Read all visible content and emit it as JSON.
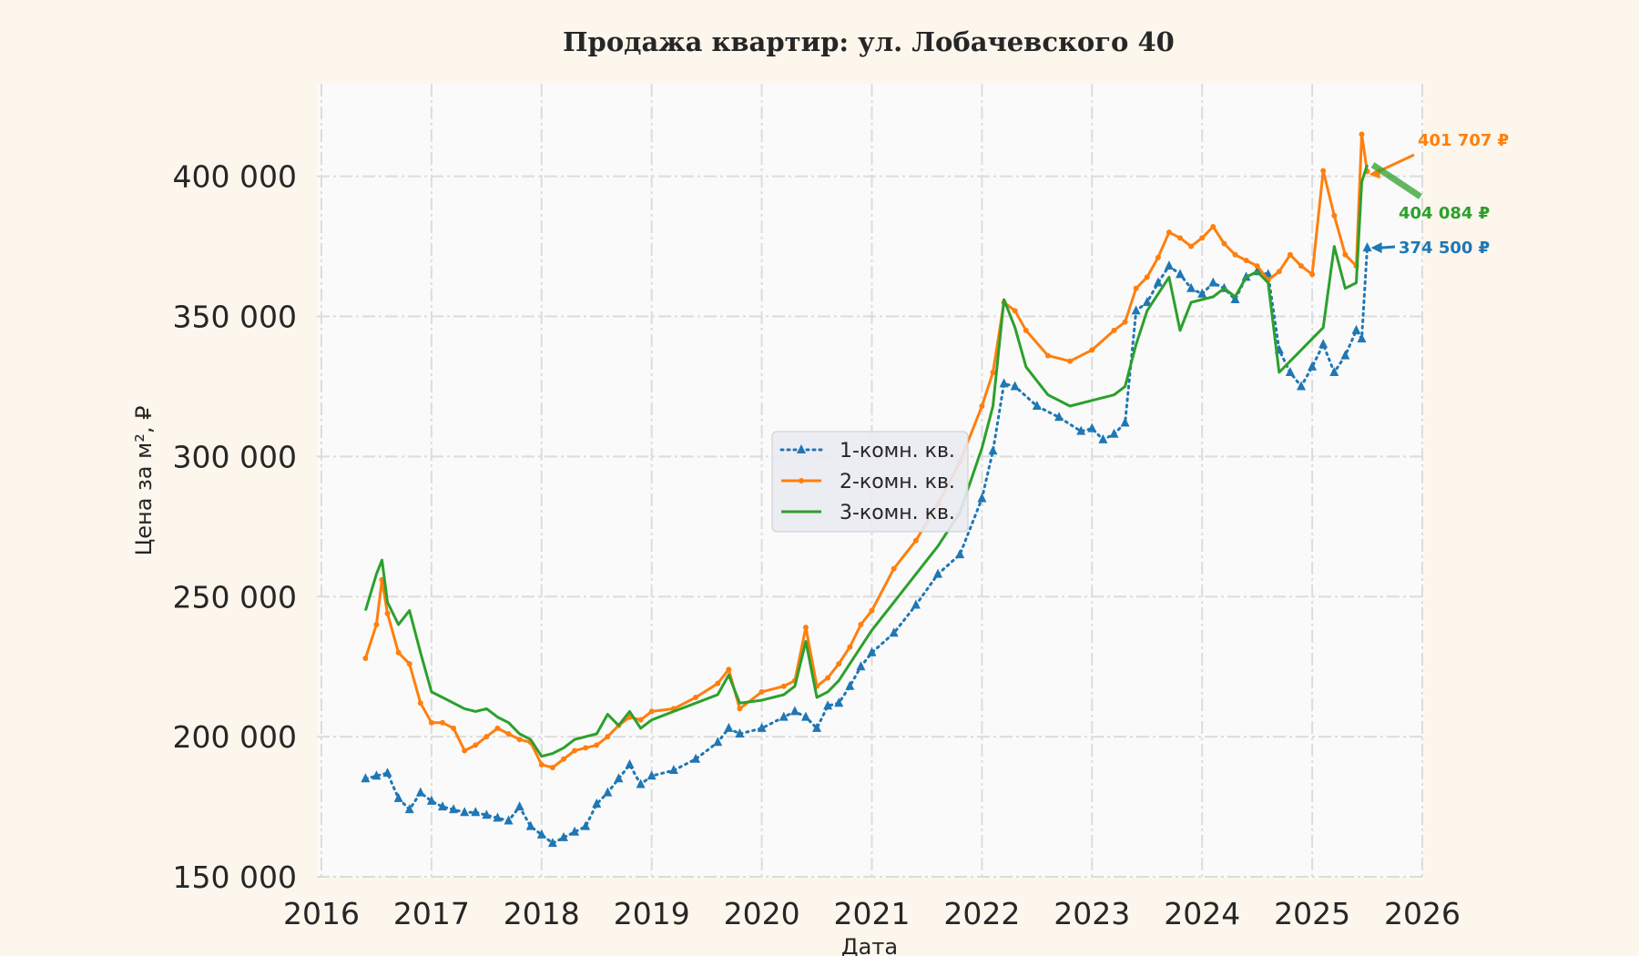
{
  "chart_data": {
    "type": "line",
    "title": "Продажа квартир: ул. Лобачевского 40",
    "xlabel": "Дата",
    "ylabel": "Цена за м², ₽",
    "xlim": [
      2016,
      2026
    ],
    "ylim": [
      150000,
      425000
    ],
    "x_ticks": [
      "2016",
      "2017",
      "2018",
      "2019",
      "2020",
      "2021",
      "2022",
      "2023",
      "2024",
      "2025",
      "2026"
    ],
    "y_ticks": [
      "150 000",
      "200 000",
      "250 000",
      "300 000",
      "350 000",
      "400 000"
    ],
    "grid": true,
    "legend_position": "center",
    "series": [
      {
        "name": "1-комн. кв.",
        "color": "#1f77b4",
        "style": "dotted-triangle",
        "x": [
          2016.4,
          2016.5,
          2016.6,
          2016.7,
          2016.8,
          2016.9,
          2017.0,
          2017.1,
          2017.2,
          2017.3,
          2017.4,
          2017.5,
          2017.6,
          2017.7,
          2017.8,
          2017.9,
          2018.0,
          2018.1,
          2018.2,
          2018.3,
          2018.4,
          2018.5,
          2018.6,
          2018.7,
          2018.8,
          2018.9,
          2019.0,
          2019.2,
          2019.4,
          2019.6,
          2019.7,
          2019.8,
          2020.0,
          2020.2,
          2020.3,
          2020.4,
          2020.5,
          2020.6,
          2020.7,
          2020.8,
          2020.9,
          2021.0,
          2021.2,
          2021.4,
          2021.6,
          2021.8,
          2022.0,
          2022.1,
          2022.2,
          2022.3,
          2022.5,
          2022.7,
          2022.9,
          2023.0,
          2023.1,
          2023.2,
          2023.3,
          2023.4,
          2023.5,
          2023.6,
          2023.7,
          2023.8,
          2023.9,
          2024.0,
          2024.1,
          2024.2,
          2024.3,
          2024.4,
          2024.5,
          2024.6,
          2024.7,
          2024.8,
          2024.9,
          2025.0,
          2025.1,
          2025.2,
          2025.3,
          2025.4,
          2025.45,
          2025.5
        ],
        "values": [
          185000,
          186000,
          187000,
          178000,
          174000,
          180000,
          177000,
          175000,
          174000,
          173000,
          173000,
          172000,
          171000,
          170000,
          175000,
          168000,
          165000,
          162000,
          164000,
          166000,
          168000,
          176000,
          180000,
          185000,
          190000,
          183000,
          186000,
          188000,
          192000,
          198000,
          203000,
          201000,
          203000,
          207000,
          209000,
          207000,
          203000,
          211000,
          212000,
          218000,
          225000,
          230000,
          237000,
          247000,
          258000,
          265000,
          285000,
          302000,
          326000,
          325000,
          318000,
          314000,
          309000,
          310000,
          306000,
          308000,
          312000,
          352000,
          355000,
          362000,
          368000,
          365000,
          360000,
          358000,
          362000,
          360000,
          356000,
          364000,
          366000,
          365000,
          338000,
          330000,
          325000,
          332000,
          340000,
          330000,
          336000,
          345000,
          342000,
          374500
        ]
      },
      {
        "name": "2-комн. кв.",
        "color": "#ff7f0e",
        "style": "solid-plus",
        "x": [
          2016.4,
          2016.5,
          2016.55,
          2016.6,
          2016.7,
          2016.8,
          2016.9,
          2017.0,
          2017.1,
          2017.2,
          2017.3,
          2017.4,
          2017.5,
          2017.6,
          2017.7,
          2017.8,
          2017.9,
          2018.0,
          2018.1,
          2018.2,
          2018.3,
          2018.4,
          2018.5,
          2018.6,
          2018.7,
          2018.8,
          2018.9,
          2019.0,
          2019.2,
          2019.4,
          2019.6,
          2019.7,
          2019.8,
          2020.0,
          2020.2,
          2020.3,
          2020.4,
          2020.5,
          2020.6,
          2020.7,
          2020.8,
          2020.9,
          2021.0,
          2021.2,
          2021.4,
          2021.6,
          2021.8,
          2022.0,
          2022.1,
          2022.2,
          2022.3,
          2022.4,
          2022.6,
          2022.8,
          2023.0,
          2023.2,
          2023.3,
          2023.4,
          2023.5,
          2023.6,
          2023.7,
          2023.8,
          2023.9,
          2024.0,
          2024.1,
          2024.2,
          2024.3,
          2024.4,
          2024.5,
          2024.6,
          2024.7,
          2024.8,
          2024.9,
          2025.0,
          2025.1,
          2025.2,
          2025.3,
          2025.4,
          2025.45,
          2025.5
        ],
        "values": [
          228000,
          240000,
          256000,
          244000,
          230000,
          226000,
          212000,
          205000,
          205000,
          203000,
          195000,
          197000,
          200000,
          203000,
          201000,
          199000,
          198000,
          190000,
          189000,
          192000,
          195000,
          196000,
          197000,
          200000,
          204000,
          207000,
          206000,
          209000,
          210000,
          214000,
          219000,
          224000,
          210000,
          216000,
          218000,
          220000,
          239000,
          218000,
          221000,
          226000,
          232000,
          240000,
          245000,
          260000,
          270000,
          283000,
          298000,
          318000,
          330000,
          355000,
          352000,
          345000,
          336000,
          334000,
          338000,
          345000,
          348000,
          360000,
          364000,
          371000,
          380000,
          378000,
          375000,
          378000,
          382000,
          376000,
          372000,
          370000,
          368000,
          363000,
          366000,
          372000,
          368000,
          365000,
          402000,
          386000,
          372000,
          368000,
          415000,
          401707
        ]
      },
      {
        "name": "3-комн. кв.",
        "color": "#2ca02c",
        "style": "solid",
        "x": [
          2016.4,
          2016.5,
          2016.55,
          2016.6,
          2016.7,
          2016.8,
          2016.9,
          2017.0,
          2017.1,
          2017.2,
          2017.3,
          2017.4,
          2017.5,
          2017.6,
          2017.7,
          2017.8,
          2017.9,
          2018.0,
          2018.1,
          2018.2,
          2018.3,
          2018.4,
          2018.5,
          2018.6,
          2018.7,
          2018.8,
          2018.9,
          2019.0,
          2019.2,
          2019.4,
          2019.6,
          2019.7,
          2019.8,
          2020.0,
          2020.2,
          2020.3,
          2020.4,
          2020.5,
          2020.6,
          2020.7,
          2020.8,
          2020.9,
          2021.0,
          2021.2,
          2021.4,
          2021.6,
          2021.8,
          2022.0,
          2022.1,
          2022.2,
          2022.3,
          2022.4,
          2022.6,
          2022.8,
          2023.0,
          2023.2,
          2023.3,
          2023.4,
          2023.5,
          2023.6,
          2023.7,
          2023.8,
          2023.9,
          2024.0,
          2024.1,
          2024.2,
          2024.3,
          2024.4,
          2024.5,
          2024.6,
          2024.7,
          2024.8,
          2024.9,
          2025.0,
          2025.1,
          2025.2,
          2025.3,
          2025.4,
          2025.45,
          2025.5
        ],
        "values": [
          245000,
          258000,
          263000,
          248000,
          240000,
          245000,
          230000,
          216000,
          214000,
          212000,
          210000,
          209000,
          210000,
          207000,
          205000,
          201000,
          199000,
          193000,
          194000,
          196000,
          199000,
          200000,
          201000,
          208000,
          204000,
          209000,
          203000,
          206000,
          209000,
          212000,
          215000,
          222000,
          212000,
          213000,
          215000,
          218000,
          234000,
          214000,
          216000,
          220000,
          226000,
          232000,
          238000,
          248000,
          258000,
          268000,
          280000,
          303000,
          318000,
          356000,
          346000,
          332000,
          322000,
          318000,
          320000,
          322000,
          325000,
          340000,
          352000,
          358000,
          364000,
          345000,
          355000,
          356000,
          357000,
          360000,
          357000,
          364000,
          366000,
          362000,
          330000,
          334000,
          338000,
          342000,
          346000,
          375000,
          360000,
          362000,
          398000,
          404084
        ]
      }
    ],
    "annotations": [
      {
        "text": "401 707 ₽",
        "color": "#ff7f0e",
        "x": 2025.5,
        "y": 401707
      },
      {
        "text": "404 084 ₽",
        "color": "#2ca02c",
        "x": 2025.5,
        "y": 404084
      },
      {
        "text": "374 500 ₽",
        "color": "#1f77b4",
        "x": 2025.5,
        "y": 374500
      }
    ]
  }
}
